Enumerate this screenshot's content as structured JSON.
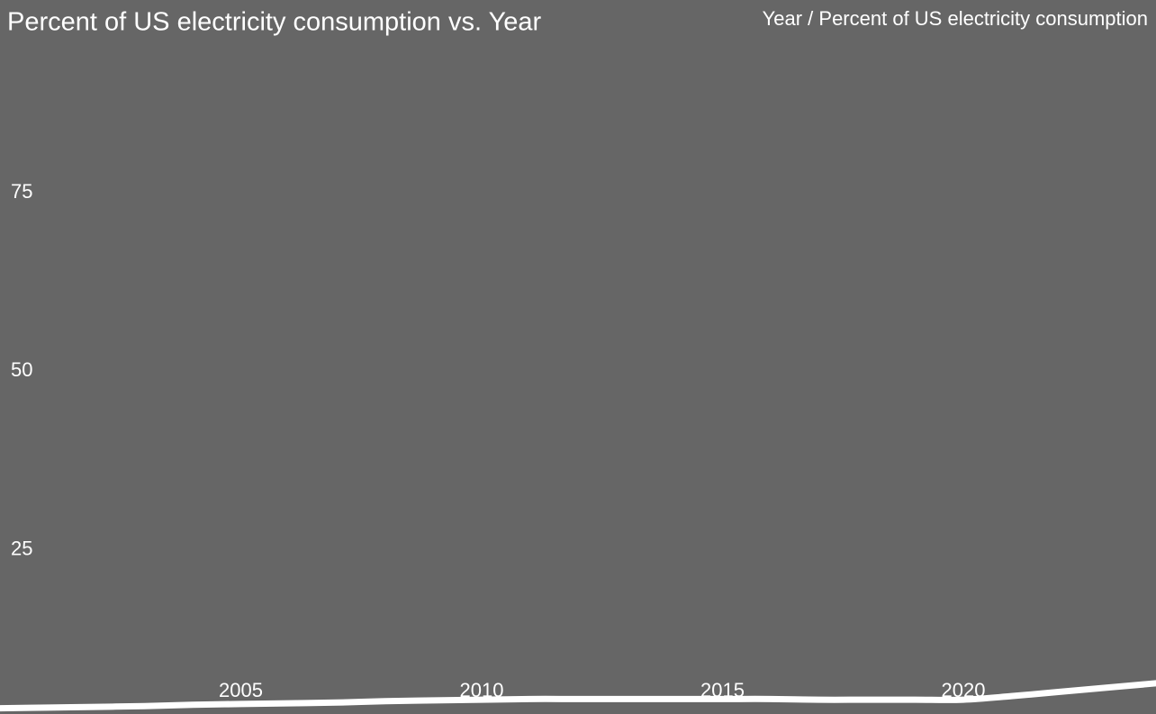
{
  "chart_data": {
    "type": "line",
    "title": "Percent of US electricity consumption vs. Year",
    "subtitle": "Year / Percent of US electricity consumption",
    "x": [
      2000,
      2001,
      2002,
      2003,
      2004,
      2005,
      2006,
      2007,
      2008,
      2009,
      2010,
      2011,
      2012,
      2013,
      2014,
      2015,
      2016,
      2017,
      2018,
      2019,
      2020,
      2021,
      2022,
      2023,
      2024
    ],
    "values": [
      2.8,
      2.9,
      3.0,
      3.1,
      3.3,
      3.4,
      3.5,
      3.6,
      3.8,
      3.9,
      4.0,
      4.1,
      4.1,
      4.1,
      4.1,
      4.1,
      4.1,
      4.0,
      4.0,
      4.0,
      4.0,
      4.5,
      5.1,
      5.7,
      6.3
    ],
    "color": "#ffffff",
    "xlim": [
      2000,
      2024
    ],
    "xticks": [
      2005,
      2010,
      2015,
      2020
    ],
    "ylim": [
      2,
      102
    ],
    "yticks": [
      25,
      50,
      75
    ]
  }
}
